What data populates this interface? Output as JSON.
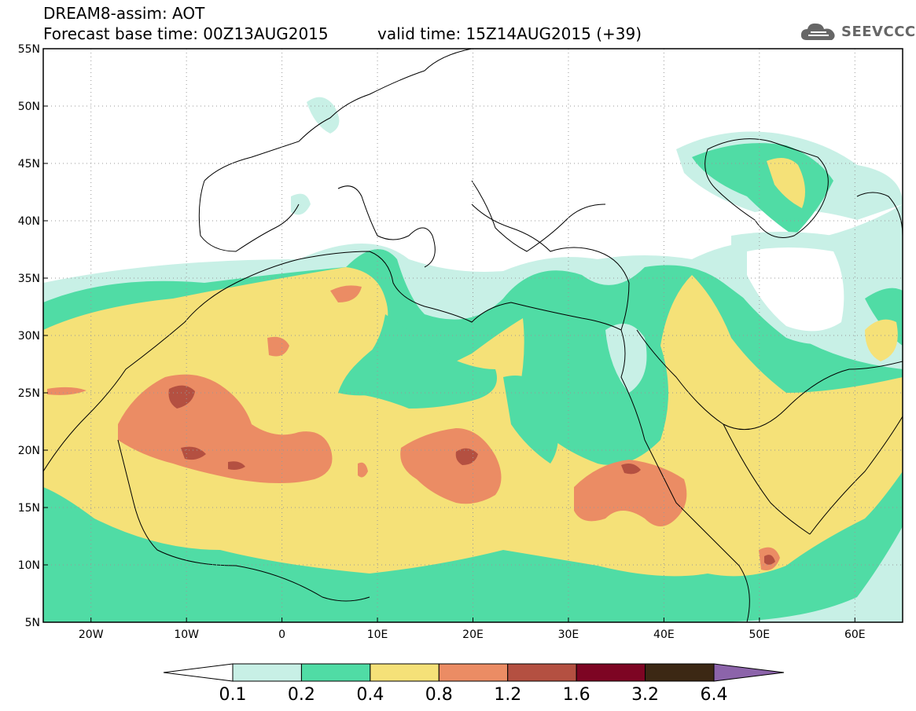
{
  "header": {
    "title_line1": "DREAM8-assim: AOT",
    "title_line2": "Forecast base time: 00Z13AUG2015",
    "valid_time": "valid time: 15Z14AUG2015 (+39)",
    "logo_text": "SEEVCCC"
  },
  "map": {
    "lon_range": [
      -25,
      65
    ],
    "lat_range": [
      5,
      55
    ],
    "lat_ticks": [
      {
        "value": 55,
        "label": "55N"
      },
      {
        "value": 50,
        "label": "50N"
      },
      {
        "value": 45,
        "label": "45N"
      },
      {
        "value": 40,
        "label": "40N"
      },
      {
        "value": 35,
        "label": "35N"
      },
      {
        "value": 30,
        "label": "30N"
      },
      {
        "value": 25,
        "label": "25N"
      },
      {
        "value": 20,
        "label": "20N"
      },
      {
        "value": 15,
        "label": "15N"
      },
      {
        "value": 10,
        "label": "10N"
      },
      {
        "value": 5,
        "label": "5N"
      }
    ],
    "lon_ticks": [
      {
        "value": -20,
        "label": "20W"
      },
      {
        "value": -10,
        "label": "10W"
      },
      {
        "value": 0,
        "label": "0"
      },
      {
        "value": 10,
        "label": "10E"
      },
      {
        "value": 20,
        "label": "20E"
      },
      {
        "value": 30,
        "label": "30E"
      },
      {
        "value": 40,
        "label": "40E"
      },
      {
        "value": 50,
        "label": "50E"
      },
      {
        "value": 60,
        "label": "60E"
      }
    ]
  },
  "colorbar": {
    "colors": [
      "#c8f0e6",
      "#50dca5",
      "#f5e178",
      "#eb8c64",
      "#b45041",
      "#7d0523",
      "#3c2814"
    ],
    "under_color": "#ffffff",
    "over_color": "#8c64aa",
    "labels": [
      "0.1",
      "0.2",
      "0.4",
      "0.8",
      "1.2",
      "1.6",
      "3.2",
      "6.4"
    ]
  }
}
